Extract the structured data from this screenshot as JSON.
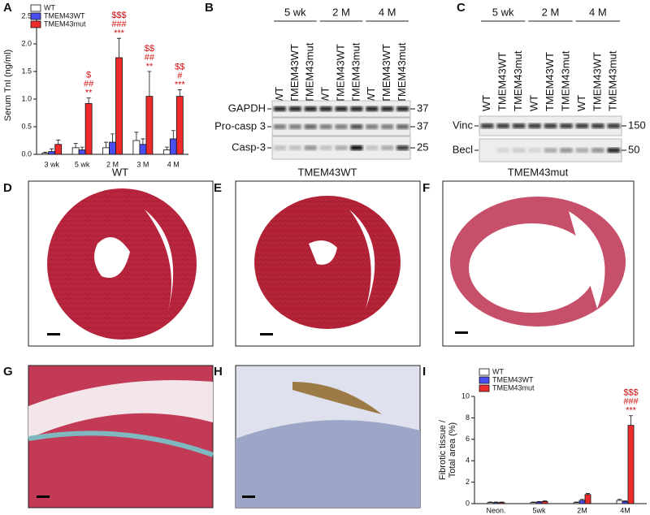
{
  "panel_letters": [
    "A",
    "B",
    "C",
    "D",
    "E",
    "F",
    "G",
    "H",
    "I"
  ],
  "chart_data": [
    {
      "type": "bar",
      "ylabel": "Serum TnI (ng/ml)",
      "categories": [
        "3 wk",
        "5 wk",
        "2 M",
        "3 M",
        "4 M"
      ],
      "series": [
        {
          "name": "WT",
          "color": "#ffffff",
          "values": [
            0.02,
            0.12,
            0.12,
            0.25,
            0.08
          ],
          "errors": [
            0.02,
            0.08,
            0.1,
            0.15,
            0.05
          ]
        },
        {
          "name": "TMEM43WT",
          "color": "#4a4ef0",
          "values": [
            0.05,
            0.08,
            0.22,
            0.18,
            0.28
          ],
          "errors": [
            0.05,
            0.05,
            0.15,
            0.1,
            0.15
          ]
        },
        {
          "name": "TMEM43mut",
          "color": "#ee2a2a",
          "values": [
            0.18,
            0.92,
            1.75,
            1.05,
            1.05
          ],
          "errors": [
            0.08,
            0.1,
            0.35,
            0.45,
            0.12
          ]
        }
      ],
      "significance": [
        null,
        [
          "$",
          "##",
          "**"
        ],
        [
          "$$$",
          "###",
          "***"
        ],
        [
          "$$",
          "##",
          "**"
        ],
        [
          "$$",
          "#",
          "***"
        ]
      ],
      "ylim": [
        0,
        2.5
      ],
      "yticks": [
        {
          "value": 0,
          "label": "0.0"
        },
        0.5,
        {
          "value": 1,
          "label": "1.0"
        },
        1.5,
        {
          "value": 2,
          "label": "2.0"
        },
        2.5
      ],
      "legend": "top-left"
    },
    {
      "type": "bar",
      "ylabel": [
        "Fibrotic tissue /",
        "Total area (%)"
      ],
      "categories": [
        "Neon.",
        "5wk",
        "2M",
        "4M"
      ],
      "series": [
        {
          "name": "WT",
          "color": "#ffffff",
          "values": [
            0.1,
            0.1,
            0.1,
            0.3
          ],
          "errors": [
            0.05,
            0.05,
            0.05,
            0.1
          ]
        },
        {
          "name": "TMEM43WT",
          "color": "#4a4ef0",
          "values": [
            0.1,
            0.15,
            0.3,
            0.2
          ],
          "errors": [
            0.05,
            0.05,
            0.1,
            0.05
          ]
        },
        {
          "name": "TMEM43mut",
          "color": "#ee2a2a",
          "values": [
            0.1,
            0.2,
            0.85,
            7.3
          ],
          "errors": [
            0.05,
            0.05,
            0.1,
            0.9
          ]
        }
      ],
      "significance": [
        null,
        null,
        null,
        [
          "$$$",
          "###",
          "***"
        ]
      ],
      "ylim": [
        0,
        10
      ],
      "yticks": [
        0,
        2,
        4,
        6,
        8,
        10
      ],
      "legend": "top-left"
    }
  ],
  "blot_b": {
    "groups": [
      "5 wk",
      "2 M",
      "4 M"
    ],
    "lanes": [
      "WT",
      "TMEM43WT",
      "TMEM43mut",
      "WT",
      "TMEM43WT",
      "TMEM43mut",
      "WT",
      "TMEM43WT",
      "TMEM43mut"
    ],
    "rows": [
      {
        "label": "GAPDH",
        "marker": "37"
      },
      {
        "label": "Pro-casp 3",
        "marker": "37"
      },
      {
        "label": "Casp-3",
        "marker": "25"
      }
    ]
  },
  "blot_c": {
    "groups": [
      "5 wk",
      "2 M",
      "4 M"
    ],
    "lanes": [
      "WT",
      "TMEM43WT",
      "TMEM43mut",
      "WT",
      "TMEM43WT",
      "TMEM43mut",
      "WT",
      "TMEM43WT",
      "TMEM43mut"
    ],
    "rows": [
      {
        "label": "Vinc",
        "marker": "150"
      },
      {
        "label": "Becl",
        "marker": "50"
      }
    ]
  },
  "histology": {
    "titles": [
      "WT",
      "TMEM43WT",
      "TMEM43mut"
    ]
  }
}
